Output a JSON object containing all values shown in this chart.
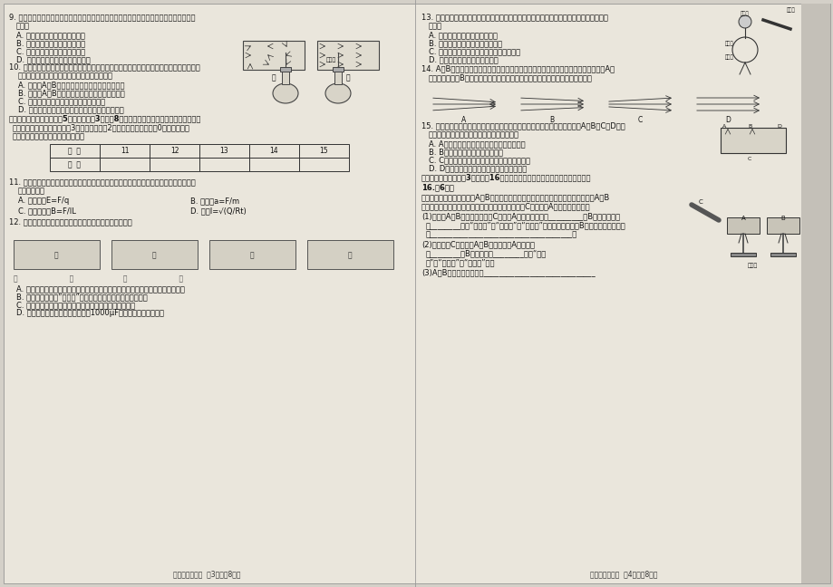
{
  "bg_color": "#d4d0c8",
  "page_bg": "#eae6dc",
  "text_color": "#1a1a1a",
  "title_left": "高二物理（文）  第3页（共8页）",
  "title_right": "高二物理（文）  第4页（共8页）",
  "table_headers": [
    "题  号",
    "11",
    "12",
    "13",
    "14",
    "15"
  ],
  "table_row": [
    "答  案",
    "",
    "",
    "",
    "",
    ""
  ]
}
